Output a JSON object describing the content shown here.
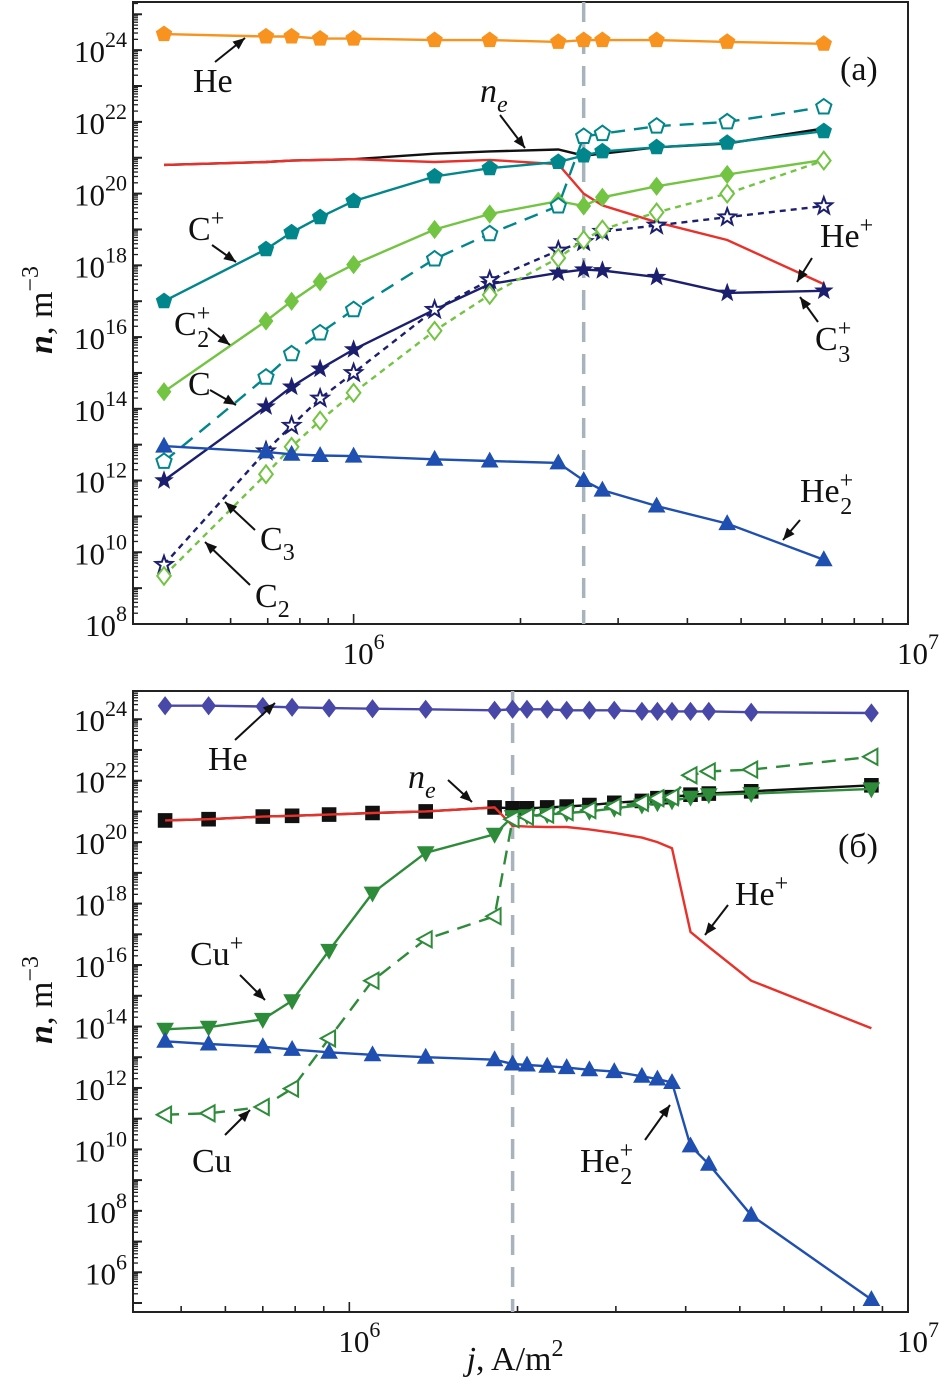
{
  "chart_data": [
    {
      "type": "line",
      "panel_label": "(a)",
      "xscale": "log",
      "yscale": "log",
      "xlim": [
        400000.0,
        10000000.0
      ],
      "ylim": [
        100000000.0,
        2.2e+25
      ],
      "xtick_exponents": [
        6,
        7
      ],
      "ytick_exponents": [
        8,
        10,
        12,
        14,
        16,
        18,
        20,
        22,
        24
      ],
      "tick_base": "10",
      "ylabel": {
        "italic": "n",
        "rest": ", m",
        "sup": "−3"
      },
      "xlabel": null,
      "vline_x": 2600000.0,
      "grid": false,
      "x": [
        455000.0,
        695000.0,
        773000.0,
        870000.0,
        1000000.0,
        1400000.0,
        1760000.0,
        2340000.0,
        2600000.0,
        2810000.0,
        3520000.0,
        4720000.0,
        7050000.0
      ],
      "series": [
        {
          "name": "He",
          "color": "#f7931e",
          "marker": "pentagon",
          "filled": true,
          "line": "solid",
          "values": [
            2.8e+24,
            2.4e+24,
            2.4e+24,
            2.1e+24,
            2.1e+24,
            1.9e+24,
            1.9e+24,
            1.7e+24,
            1.9e+24,
            1.9e+24,
            1.9e+24,
            1.7e+24,
            1.5e+24
          ]
        },
        {
          "name": "ne",
          "color": "#111111",
          "marker": "circle",
          "filled": true,
          "line": "solid",
          "values": [
            6.3e+20,
            7.6e+20,
            8.3e+20,
            8.7e+20,
            9.1e+20,
            1.3e+21,
            1.5e+21,
            1.7e+21,
            1.15e+21,
            1.3e+21,
            1.95e+21,
            2.5e+21,
            6.6e+21
          ]
        },
        {
          "name": "He+",
          "color": "#e8312a",
          "marker": "circle",
          "filled": true,
          "line": "solid",
          "values": [
            6.3e+20,
            7.6e+20,
            8.3e+20,
            8.7e+20,
            9.1e+20,
            7.6e+20,
            8.7e+20,
            6.6e+20,
            1e+20,
            4.7e+19,
            1.6e+19,
            5.1e+18,
            3e+17
          ]
        },
        {
          "name": "C+",
          "color": "#00868b",
          "marker": "pentagon",
          "filled": true,
          "line": "solid",
          "values": [
            1e+17,
            2.8e+18,
            8.3e+18,
            2.2e+19,
            6.2e+19,
            3e+20,
            5.1e+20,
            7.6e+20,
            1.15e+21,
            1.5e+21,
            1.95e+21,
            2.6e+21,
            5.5e+21
          ]
        },
        {
          "name": "C2+",
          "color": "#72c442",
          "marker": "diamond",
          "filled": true,
          "line": "solid",
          "values": [
            300000000000000.0,
            2.8e+16,
            1e+17,
            3.5e+17,
            1.05e+18,
            1e+19,
            2.7e+19,
            6.2e+19,
            4.5e+19,
            7.9e+19,
            1.6e+20,
            3.4e+20,
            8.7e+20
          ]
        },
        {
          "name": "C",
          "color": "#00868b",
          "marker": "pentagon",
          "filled": false,
          "line": "dashed",
          "values": [
            3400000000000.0,
            760000000000000.0,
            3400000000000000.0,
            1.3e+16,
            5.8e+16,
            1.5e+18,
            7.6e+18,
            4.5e+19,
            3.9e+21,
            4.7e+21,
            7.6e+21,
            1e+22,
            2.6e+22
          ]
        },
        {
          "name": "C3+",
          "color": "#1b1f6e",
          "marker": "star",
          "filled": true,
          "line": "solid",
          "values": [
            1000000000000.0,
            115000000000000.0,
            410000000000000.0,
            1300000000000000.0,
            4500000000000000.0,
            5.8e+16,
            3e+17,
            6.2e+17,
            7.6e+17,
            7.2e+17,
            4.7e+17,
            1.7e+17,
            1.95e+17
          ]
        },
        {
          "name": "C3",
          "color": "#1b1f6e",
          "marker": "star",
          "filled": false,
          "line": "dotted",
          "values": [
            4500000000.0,
            6600000000000.0,
            34000000000000.0,
            195000000000000.0,
            1000000000000000.0,
            5.8e+16,
            3.9e+17,
            2.6e+18,
            4.5e+18,
            8.7e+18,
            1.3e+19,
            2.2e+19,
            4.5e+19
          ]
        },
        {
          "name": "C2",
          "color": "#72c442",
          "marker": "diamond",
          "filled": false,
          "line": "dotted",
          "values": [
            2200000000.0,
            1500000000000.0,
            8700000000000.0,
            47000000000000.0,
            280000000000000.0,
            1.5e+16,
            1.5e+17,
            1.6e+18,
            5.1e+18,
            1e+19,
            3e+19,
            1e+20,
            8.3e+20
          ]
        },
        {
          "name": "He2+",
          "color": "#1f4fb0",
          "marker": "triangle-up",
          "filled": true,
          "line": "solid",
          "values": [
            9100000000000.0,
            6300000000000.0,
            5400000000000.0,
            5000000000000.0,
            4800000000000.0,
            3900000000000.0,
            3500000000000.0,
            3100000000000.0,
            1000000000000.0,
            540000000000.0,
            195000000000.0,
            63000000000.0,
            6200000000.0
          ]
        }
      ],
      "annotations": [
        {
          "text": "He",
          "sub": "",
          "sup": "",
          "italic": false
        },
        {
          "text": "n",
          "sub": "e",
          "sup": "",
          "italic": true
        },
        {
          "text": "C",
          "sub": "",
          "sup": "+",
          "italic": false
        },
        {
          "text": "He",
          "sub": "",
          "sup": "+",
          "italic": false
        },
        {
          "text": "C",
          "sub": "2",
          "sup": "+",
          "italic": false
        },
        {
          "text": "C",
          "sub": "3",
          "sup": "+",
          "italic": false
        },
        {
          "text": "C",
          "sub": "",
          "sup": "",
          "italic": false
        },
        {
          "text": "He",
          "sub": "2",
          "sup": "+",
          "italic": false
        },
        {
          "text": "C",
          "sub": "3",
          "sup": "",
          "italic": false
        },
        {
          "text": "C",
          "sub": "2",
          "sup": "",
          "italic": false
        }
      ]
    },
    {
      "type": "line",
      "panel_label": "(б)",
      "xscale": "log",
      "yscale": "log",
      "xlim": [
        410000.0,
        10000000.0
      ],
      "ylim": [
        51000.0,
        8.3e+24
      ],
      "xtick_exponents": [
        6,
        7
      ],
      "ytick_exponents": [
        6,
        8,
        10,
        12,
        14,
        16,
        18,
        20,
        22,
        24
      ],
      "tick_base": "10",
      "ylabel": {
        "italic": "n",
        "rest": ", m",
        "sup": "−3"
      },
      "xlabel": {
        "italic": "j",
        "rest": ", A/m",
        "sup": "2"
      },
      "vline_x": 1960000.0,
      "grid": false,
      "x": [
        468000.0,
        560000.0,
        700000.0,
        790000.0,
        920000.0,
        1100000.0,
        1370000.0,
        1820000.0,
        1960000.0,
        2080000.0,
        2260000.0,
        2450000.0,
        2690000.0,
        2980000.0,
        3340000.0,
        3560000.0,
        3780000.0,
        4080000.0,
        4400000.0,
        5240000.0,
        8600000.0
      ],
      "series": [
        {
          "name": "He",
          "color": "#4848a8",
          "marker": "diamond",
          "filled": true,
          "line": "solid",
          "values": [
            2.75e+24,
            2.75e+24,
            2.6e+24,
            2.45e+24,
            2.3e+24,
            2.2e+24,
            2.1e+24,
            1.95e+24,
            2.1e+24,
            2.1e+24,
            2.1e+24,
            1.95e+24,
            1.95e+24,
            1.95e+24,
            1.8e+24,
            1.8e+24,
            1.8e+24,
            1.8e+24,
            1.8e+24,
            1.7e+24,
            1.6e+24
          ]
        },
        {
          "name": "ne",
          "color": "#111111",
          "marker": "square",
          "filled": true,
          "line": "solid",
          "values": [
            5.1e+20,
            5.6e+20,
            6.8e+20,
            7.2e+20,
            7.9e+20,
            8.9e+20,
            1e+21,
            1.35e+21,
            1.26e+21,
            1.26e+21,
            1.35e+21,
            1.45e+21,
            1.6e+21,
            1.9e+21,
            2.2e+21,
            2.7e+21,
            2.9e+21,
            3.5e+21,
            3.8e+21,
            4.5e+21,
            7.1e+21
          ]
        },
        {
          "name": "He+",
          "color": "#e8312a",
          "marker": "circle",
          "filled": true,
          "line": "solid",
          "values": [
            5.1e+20,
            5.6e+20,
            6.8e+20,
            7.2e+20,
            7.9e+20,
            8.9e+20,
            1e+21,
            1.35e+21,
            3.4e+20,
            3.2e+20,
            3.1e+20,
            3.1e+20,
            2.6e+20,
            2e+20,
            1.4e+20,
            1e+20,
            6.3e+19,
            1.2e+17,
            3.9e+16,
            3100000000000000.0,
            87000000000000.0
          ]
        },
        {
          "name": "Cu+",
          "color": "#2e8b3a",
          "marker": "triangle-down",
          "filled": true,
          "line": "solid",
          "values": [
            81000000000000.0,
            95000000000000.0,
            170000000000000.0,
            690000000000000.0,
            3e+16,
            2.2e+18,
            4.5e+19,
            1.8e+20,
            6.8e+20,
            7.2e+20,
            7.9e+20,
            8.9e+20,
            1e+21,
            1.26e+21,
            1.6e+21,
            1.9e+21,
            2.2e+21,
            2.9e+21,
            3.5e+21,
            3.8e+21,
            5.4e+21
          ]
        },
        {
          "name": "Cu",
          "color": "#2e8b3a",
          "marker": "triangle-left",
          "filled": false,
          "line": "dashed",
          "values": [
            135000000000.0,
            150000000000.0,
            240000000000.0,
            950000000000.0,
            41000000000000.0,
            3100000000000000.0,
            6.9e+16,
            3.9e+17,
            5.6e+20,
            6.8e+20,
            7.9e+20,
            9.5e+20,
            1.1e+21,
            1.45e+21,
            1.9e+21,
            2.7e+21,
            2.9e+21,
            1.5e+22,
            2e+22,
            2.3e+22,
            6e+22
          ]
        },
        {
          "name": "He2+",
          "color": "#1f4fb0",
          "marker": "triangle-up",
          "filled": true,
          "line": "solid",
          "values": [
            33000000000000.0,
            27000000000000.0,
            22000000000000.0,
            18000000000000.0,
            14500000000000.0,
            12000000000000.0,
            10000000000000.0,
            8300000000000.0,
            6000000000000.0,
            5600000000000.0,
            5100000000000.0,
            4600000000000.0,
            3900000000000.0,
            3400000000000.0,
            2400000000000.0,
            1950000000000.0,
            1500000000000.0,
            13000000000.0,
            3300000000.0,
            72000000.0,
            130000.0
          ]
        }
      ],
      "annotations": [
        {
          "text": "He",
          "sub": "",
          "sup": "",
          "italic": false
        },
        {
          "text": "n",
          "sub": "e",
          "sup": "",
          "italic": true
        },
        {
          "text": "He",
          "sub": "",
          "sup": "+",
          "italic": false
        },
        {
          "text": "Cu",
          "sub": "",
          "sup": "+",
          "italic": false
        },
        {
          "text": "Cu",
          "sub": "",
          "sup": "",
          "italic": false
        },
        {
          "text": "He",
          "sub": "2",
          "sup": "+",
          "italic": false
        }
      ]
    }
  ]
}
